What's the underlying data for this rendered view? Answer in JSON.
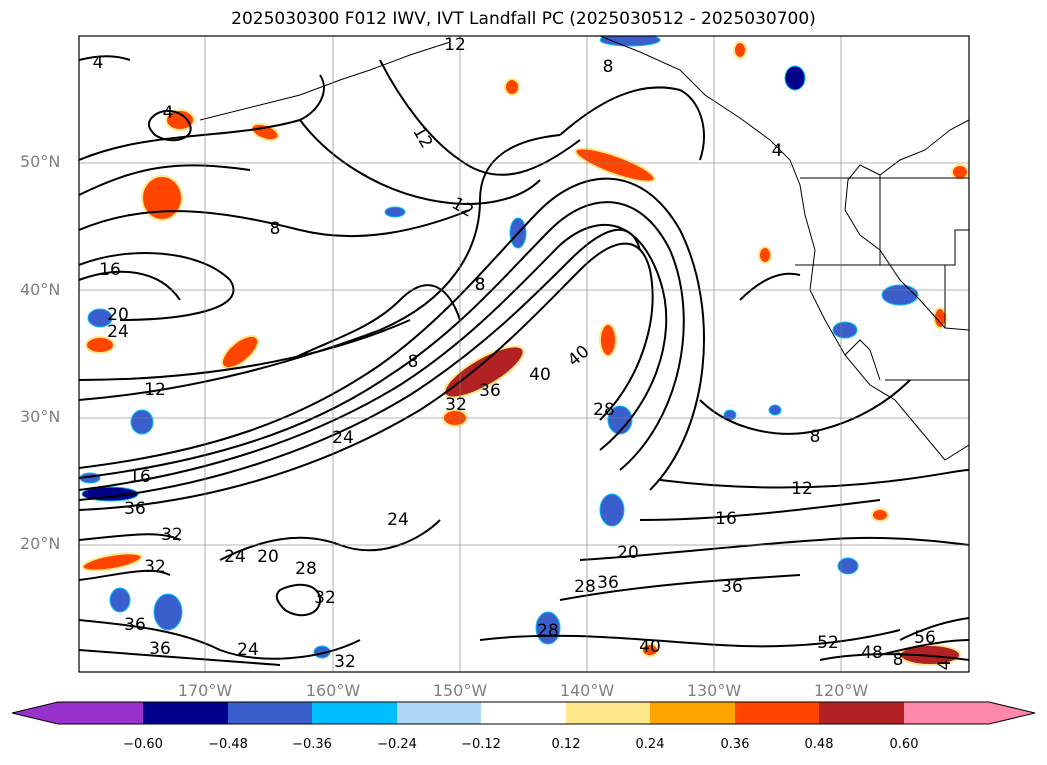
{
  "title": "2025030300 F012 IWV, IVT Landfall PC (2025030512 - 2025030700)",
  "latitude_labels": [
    "50°N",
    "40°N",
    "30°N",
    "20°N"
  ],
  "longitude_labels": [
    "170°W",
    "160°W",
    "150°W",
    "140°W",
    "130°W",
    "120°W"
  ],
  "contour_labels": [
    "4",
    "12",
    "8",
    "4",
    "12",
    "12",
    "8",
    "16",
    "20",
    "24",
    "8",
    "12",
    "8",
    "40",
    "40",
    "36",
    "32",
    "28",
    "8",
    "24",
    "16",
    "36",
    "12",
    "16",
    "24",
    "32",
    "20",
    "24",
    "20",
    "28",
    "32",
    "32",
    "36",
    "36",
    "28",
    "28",
    "32",
    "24",
    "36",
    "36",
    "40",
    "52",
    "56",
    "48",
    "8",
    "4",
    "8",
    "4"
  ],
  "colorbar": {
    "ticks": [
      "−0.60",
      "−0.48",
      "−0.36",
      "−0.24",
      "−0.12",
      "0.12",
      "0.24",
      "0.36",
      "0.48",
      "0.60"
    ],
    "colors": [
      "#9932cc",
      "#00008b",
      "#3a5fcd",
      "#00bfff",
      "#add8f6",
      "#ffffff",
      "#ffe88c",
      "#ffa500",
      "#ff4500",
      "#b22222",
      "#ff88aa"
    ]
  }
}
